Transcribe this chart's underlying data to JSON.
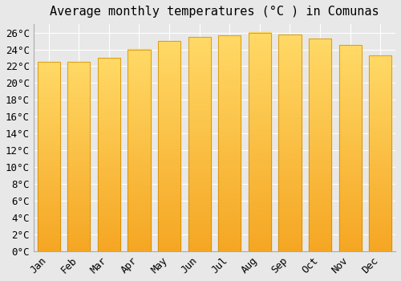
{
  "title": "Average monthly temperatures (°C ) in Comunas",
  "months": [
    "Jan",
    "Feb",
    "Mar",
    "Apr",
    "May",
    "Jun",
    "Jul",
    "Aug",
    "Sep",
    "Oct",
    "Nov",
    "Dec"
  ],
  "values": [
    22.5,
    22.5,
    23.0,
    24.0,
    25.0,
    25.5,
    25.7,
    26.0,
    25.8,
    25.3,
    24.5,
    23.3
  ],
  "bar_color_bottom": "#F5A623",
  "bar_color_top": "#FFD966",
  "bar_color_mid": "#FFC125",
  "bar_edge_color": "#CC8800",
  "background_color": "#e8e8e8",
  "plot_bg_color": "#e8e8e8",
  "grid_color": "#ffffff",
  "ylim": [
    0,
    27
  ],
  "ytick_step": 2,
  "title_fontsize": 11,
  "tick_fontsize": 9,
  "font_family": "monospace"
}
